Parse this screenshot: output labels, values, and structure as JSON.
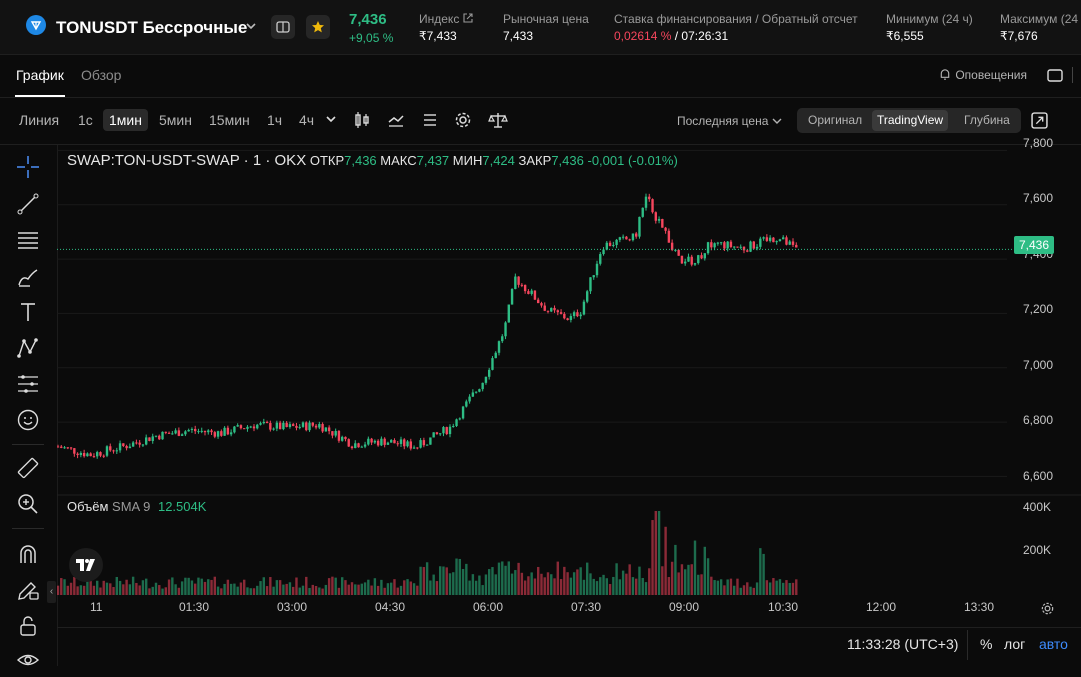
{
  "header": {
    "symbol": "TONUSDT Бессрочные",
    "last_price": "7,436",
    "change": "+9,05 %",
    "index_label": "Индекс",
    "index_value": "₹7,433",
    "market_label": "Рыночная цена",
    "market_value": "7,433",
    "funding_label": "Ставка финансирования / Обратный отсчет",
    "funding_rate": "0,02614 %",
    "funding_sep": " / ",
    "funding_countdown": "07:26:31",
    "low_label": "Минимум (24 ч)",
    "low_value": "₹6,555",
    "high_label": "Максимум (24",
    "high_value": "₹7,676"
  },
  "tabs": [
    {
      "label": "График",
      "active": true
    },
    {
      "label": "Обзор",
      "active": false
    }
  ],
  "alerts_label": "Оповещения",
  "toolbar": {
    "line": "Линия",
    "intervals": [
      "1с",
      "1мин",
      "5мин",
      "15мин",
      "1ч",
      "4ч"
    ],
    "active_interval": "1мин",
    "price_source": "Последняя цена",
    "views": [
      "Оригинал",
      "TradingView",
      "Глубина"
    ],
    "active_view": "TradingView"
  },
  "legend": {
    "symbol": "SWAP:TON-USDT-SWAP · 1 · OKX",
    "open_label": "ОТКР",
    "open": "7,436",
    "high_label": "МАКС",
    "high": "7,437",
    "low_label": "МИН",
    "low": "7,424",
    "close_label": "ЗАКР",
    "close": "7,436",
    "change": "-0,001 (-0.01%)"
  },
  "volume_legend": {
    "label": "Объём",
    "sma": "SMA 9",
    "value": "12.504K"
  },
  "price_axis": [
    "7,800",
    "7,600",
    "7,400",
    "7,200",
    "7,000",
    "6,800",
    "6,600"
  ],
  "current_price_tag": "7,436",
  "volume_axis": [
    "400K",
    "200K"
  ],
  "time_axis": [
    "11",
    "01:30",
    "03:00",
    "04:30",
    "06:00",
    "07:30",
    "09:00",
    "10:30",
    "12:00",
    "13:30"
  ],
  "status": {
    "clock": "11:33:28 (UTC+3)",
    "percent": "%",
    "log": "лог",
    "auto": "авто"
  },
  "colors": {
    "up": "#2ebd85",
    "down": "#f6465d",
    "funding": "#f6465d",
    "accent": "#1e88e5",
    "star": "#f0b90b"
  },
  "chart_data": {
    "type": "candlestick",
    "x_unit": "time (local, 1-minute candles)",
    "x": [
      "00:00",
      "00:30",
      "01:00",
      "01:30",
      "02:00",
      "02:30",
      "03:00",
      "03:30",
      "04:00",
      "04:30",
      "05:00",
      "05:30",
      "06:00",
      "06:30",
      "06:50",
      "07:00",
      "07:30",
      "07:50",
      "08:00",
      "08:20",
      "08:50",
      "09:00",
      "09:15",
      "09:30",
      "09:45",
      "10:00",
      "10:30",
      "11:00",
      "11:20"
    ],
    "close": [
      6.71,
      6.68,
      6.71,
      6.75,
      6.77,
      6.76,
      6.79,
      6.78,
      6.79,
      6.72,
      6.73,
      6.71,
      6.78,
      6.95,
      7.14,
      7.33,
      7.21,
      7.18,
      7.21,
      7.45,
      7.48,
      7.63,
      7.51,
      7.4,
      7.39,
      7.46,
      7.44,
      7.48,
      7.43
    ],
    "volume_series": {
      "name": "Объём",
      "approx_peak": "~430K near 09:10"
    },
    "ylim": [
      6.55,
      7.82
    ],
    "current_price": 7.436,
    "grid": true
  }
}
